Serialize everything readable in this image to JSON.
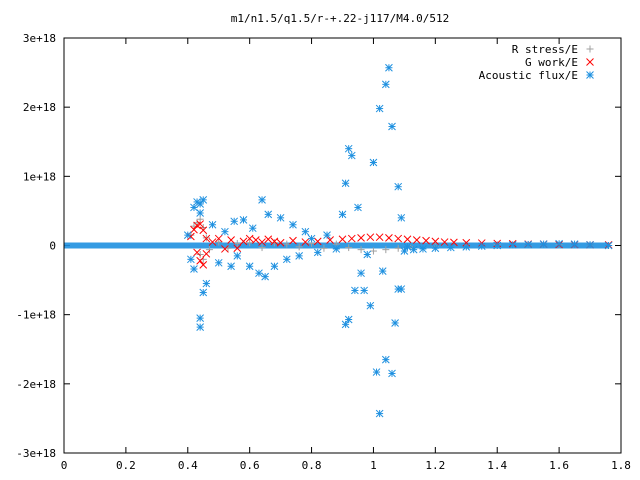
{
  "chart_data": {
    "type": "scatter",
    "title": "m1/n1.5/q1.5/r-+.22-j117/M4.0/512",
    "xlabel": "",
    "ylabel": "",
    "xlim": [
      0,
      1.8
    ],
    "ylim": [
      -3e+18,
      3e+18
    ],
    "grid": false,
    "legend_position": "top-right",
    "x_ticks": [
      {
        "value": 0,
        "label": "0"
      },
      {
        "value": 0.2,
        "label": "0.2"
      },
      {
        "value": 0.4,
        "label": "0.4"
      },
      {
        "value": 0.6,
        "label": "0.6"
      },
      {
        "value": 0.8,
        "label": "0.8"
      },
      {
        "value": 1.0,
        "label": "1"
      },
      {
        "value": 1.2,
        "label": "1.2"
      },
      {
        "value": 1.4,
        "label": "1.4"
      },
      {
        "value": 1.6,
        "label": "1.6"
      },
      {
        "value": 1.8,
        "label": "1.8"
      }
    ],
    "y_ticks": [
      {
        "value": 3e+18,
        "label": "3e+18"
      },
      {
        "value": 2e+18,
        "label": "2e+18"
      },
      {
        "value": 1e+18,
        "label": "1e+18"
      },
      {
        "value": 0,
        "label": "0"
      },
      {
        "value": -1e+18,
        "label": "-1e+18"
      },
      {
        "value": -2e+18,
        "label": "-2e+18"
      },
      {
        "value": -3e+18,
        "label": "-3e+18"
      }
    ],
    "series": [
      {
        "name": "R stress/E",
        "marker": "plus",
        "color": "#a0a0a0",
        "points": [
          [
            0.41,
            1.5e+17
          ],
          [
            0.42,
            2.8e+17
          ],
          [
            0.43,
            3.3e+17
          ],
          [
            0.44,
            3.8e+17
          ],
          [
            0.45,
            2.6e+17
          ],
          [
            0.46,
            1.1e+17
          ],
          [
            0.44,
            -1.3e+17
          ],
          [
            0.45,
            -2e+17
          ],
          [
            0.47,
            -6e+16
          ],
          [
            0.5,
            5e+16
          ],
          [
            0.53,
            -4e+16
          ],
          [
            0.56,
            3e+16
          ],
          [
            0.6,
            4e+16
          ],
          [
            0.64,
            -3e+16
          ],
          [
            0.68,
            4e+16
          ],
          [
            0.72,
            2e+16
          ],
          [
            0.76,
            -2e+16
          ],
          [
            0.8,
            3e+16
          ],
          [
            0.84,
            -4e+16
          ],
          [
            0.88,
            2e+16
          ],
          [
            0.92,
            -3e+16
          ],
          [
            0.96,
            -6e+16
          ],
          [
            1.0,
            -8e+16
          ],
          [
            1.04,
            -6e+16
          ],
          [
            1.08,
            -4e+16
          ],
          [
            1.12,
            -2e+16
          ],
          [
            1.2,
            -1e+16
          ],
          [
            1.3,
            5000000000000000.0
          ],
          [
            1.4,
            1e+16
          ],
          [
            1.5,
            1.5e+16
          ],
          [
            1.6,
            1e+16
          ],
          [
            1.7,
            1e+16
          ],
          [
            1.76,
            0
          ]
        ]
      },
      {
        "name": "G work/E",
        "marker": "cross",
        "color": "#ff0000",
        "points": [
          [
            0.41,
            1.3e+17
          ],
          [
            0.42,
            2.3e+17
          ],
          [
            0.43,
            2.9e+17
          ],
          [
            0.44,
            3.1e+17
          ],
          [
            0.45,
            2.2e+17
          ],
          [
            0.46,
            1e+17
          ],
          [
            0.43,
            -1e+17
          ],
          [
            0.44,
            -2.2e+17
          ],
          [
            0.45,
            -2.8e+17
          ],
          [
            0.46,
            -1.2e+17
          ],
          [
            0.48,
            5e+16
          ],
          [
            0.5,
            1e+17
          ],
          [
            0.52,
            -5e+16
          ],
          [
            0.54,
            8e+16
          ],
          [
            0.56,
            -4e+16
          ],
          [
            0.58,
            6e+16
          ],
          [
            0.6,
            1e+17
          ],
          [
            0.62,
            8e+16
          ],
          [
            0.64,
            5e+16
          ],
          [
            0.66,
            9e+16
          ],
          [
            0.68,
            6e+16
          ],
          [
            0.7,
            4e+16
          ],
          [
            0.74,
            7e+16
          ],
          [
            0.78,
            5e+16
          ],
          [
            0.82,
            6e+16
          ],
          [
            0.86,
            8e+16
          ],
          [
            0.9,
            9e+16
          ],
          [
            0.93,
            1e+17
          ],
          [
            0.96,
            1.1e+17
          ],
          [
            0.99,
            1.2e+17
          ],
          [
            1.02,
            1.2e+17
          ],
          [
            1.05,
            1.1e+17
          ],
          [
            1.08,
            1e+17
          ],
          [
            1.11,
            9e+16
          ],
          [
            1.14,
            8e+16
          ],
          [
            1.17,
            7e+16
          ],
          [
            1.2,
            6e+16
          ],
          [
            1.23,
            5e+16
          ],
          [
            1.26,
            4.5e+16
          ],
          [
            1.3,
            4e+16
          ],
          [
            1.35,
            3.5e+16
          ],
          [
            1.4,
            3e+16
          ],
          [
            1.45,
            2.5e+16
          ],
          [
            1.5,
            2e+16
          ],
          [
            1.55,
            2e+16
          ],
          [
            1.6,
            1.5e+16
          ],
          [
            1.65,
            1.5e+16
          ],
          [
            1.7,
            1e+16
          ],
          [
            1.76,
            1e+16
          ]
        ]
      },
      {
        "name": "Acoustic flux/E",
        "marker": "star",
        "color": "#1e90e0",
        "points": [
          [
            0.42,
            5.5e+17
          ],
          [
            0.43,
            6.3e+17
          ],
          [
            0.44,
            6e+17
          ],
          [
            0.45,
            6.6e+17
          ],
          [
            0.44,
            4.7e+17
          ],
          [
            0.42,
            -3.4e+17
          ],
          [
            0.44,
            -1.05e+18
          ],
          [
            0.44,
            -1.18e+18
          ],
          [
            0.45,
            -6.8e+17
          ],
          [
            0.46,
            -5.5e+17
          ],
          [
            0.41,
            -2e+17
          ],
          [
            0.4,
            1.5e+17
          ],
          [
            0.48,
            3e+17
          ],
          [
            0.5,
            -2.5e+17
          ],
          [
            0.52,
            2e+17
          ],
          [
            0.54,
            -3e+17
          ],
          [
            0.55,
            3.5e+17
          ],
          [
            0.56,
            -1.5e+17
          ],
          [
            0.58,
            3.7e+17
          ],
          [
            0.6,
            -3e+17
          ],
          [
            0.61,
            2.5e+17
          ],
          [
            0.63,
            -4e+17
          ],
          [
            0.64,
            6.6e+17
          ],
          [
            0.65,
            -4.5e+17
          ],
          [
            0.66,
            4.5e+17
          ],
          [
            0.68,
            -3e+17
          ],
          [
            0.7,
            4e+17
          ],
          [
            0.72,
            -2e+17
          ],
          [
            0.74,
            3e+17
          ],
          [
            0.76,
            -1.5e+17
          ],
          [
            0.78,
            2e+17
          ],
          [
            0.8,
            1e+17
          ],
          [
            0.82,
            -1e+17
          ],
          [
            0.85,
            1.5e+17
          ],
          [
            0.88,
            -5e+16
          ],
          [
            0.9,
            4.5e+17
          ],
          [
            0.91,
            9e+17
          ],
          [
            0.92,
            1.4e+18
          ],
          [
            0.93,
            1.3e+18
          ],
          [
            0.92,
            -1.07e+18
          ],
          [
            0.91,
            -1.14e+18
          ],
          [
            0.94,
            -6.5e+17
          ],
          [
            0.95,
            5.5e+17
          ],
          [
            0.96,
            -4e+17
          ],
          [
            0.97,
            -6.5e+17
          ],
          [
            0.98,
            -1.3e+17
          ],
          [
            0.99,
            -8.7e+17
          ],
          [
            1.0,
            1.2e+18
          ],
          [
            1.01,
            -1.83e+18
          ],
          [
            1.02,
            -2.43e+18
          ],
          [
            1.02,
            1.98e+18
          ],
          [
            1.03,
            -3.7e+17
          ],
          [
            1.04,
            -1.65e+18
          ],
          [
            1.04,
            2.33e+18
          ],
          [
            1.05,
            2.57e+18
          ],
          [
            1.06,
            -1.85e+18
          ],
          [
            1.06,
            1.72e+18
          ],
          [
            1.07,
            -1.12e+18
          ],
          [
            1.08,
            -6.3e+17
          ],
          [
            1.09,
            -6.3e+17
          ],
          [
            1.08,
            8.5e+17
          ],
          [
            1.09,
            4e+17
          ],
          [
            1.1,
            -8e+16
          ],
          [
            1.11,
            -2e+16
          ],
          [
            1.13,
            -6e+16
          ],
          [
            1.16,
            -5e+16
          ],
          [
            1.2,
            -4e+16
          ],
          [
            1.25,
            -3e+16
          ],
          [
            1.3,
            -2e+16
          ],
          [
            1.35,
            -1e+16
          ],
          [
            1.4,
            0
          ],
          [
            1.45,
            1e+16
          ],
          [
            1.5,
            1.5e+16
          ],
          [
            1.55,
            2e+16
          ],
          [
            1.6,
            2.5e+16
          ],
          [
            1.65,
            2e+16
          ],
          [
            1.7,
            1e+16
          ],
          [
            1.76,
            0
          ]
        ]
      }
    ]
  }
}
